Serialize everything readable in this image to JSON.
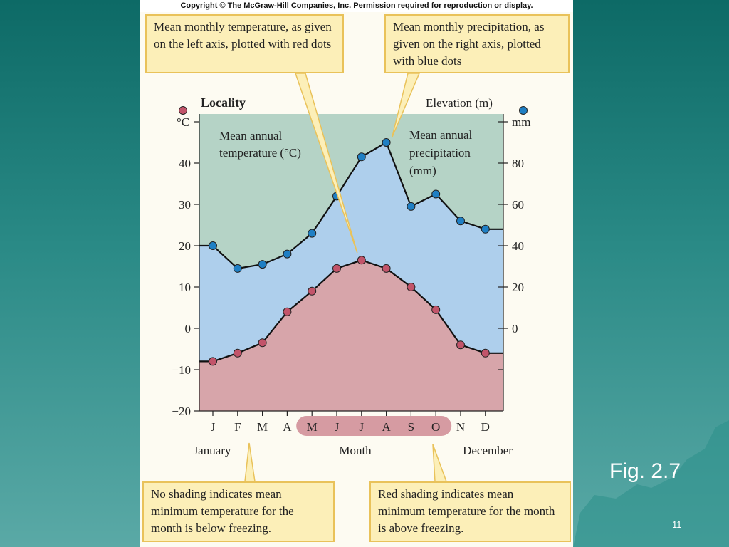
{
  "slide": {
    "fig_label": "Fig. 2.7",
    "number": "11"
  },
  "copyright": "Copyright © The McGraw-Hill Companies, Inc. Permission required for reproduction or display.",
  "callouts": {
    "top_left": "Mean monthly temperature, as given on the left axis, plotted with red dots",
    "top_right": "Mean monthly precipitation, as given on the right axis, plotted with blue dots",
    "bottom_left": "No shading indicates mean minimum temperature for the month is below freezing.",
    "bottom_right": "Red shading indicates mean minimum temperature for the month is above freezing."
  },
  "colors": {
    "temperature_fill": "#d7a5aa",
    "precipitation_fill": "#aecfec",
    "dry_fill": "#b5d3c6",
    "temperature_dot": "#c2546a",
    "precipitation_dot": "#1f7fc4",
    "month_highlight": "#cf8a94"
  },
  "chart_data": {
    "type": "line",
    "title": "Locality",
    "right_title": "Elevation (m)",
    "left_unit": "°C",
    "right_unit": "mm",
    "xlabel": "Month",
    "x_start_label": "January",
    "x_end_label": "December",
    "categories": [
      "J",
      "F",
      "M",
      "A",
      "M",
      "J",
      "J",
      "A",
      "S",
      "O",
      "N",
      "D"
    ],
    "left_ticks": [
      40,
      30,
      20,
      10,
      0,
      -10,
      -20
    ],
    "left_tick_labels": [
      "40",
      "30",
      "20",
      "10",
      "0",
      "−10",
      "−20"
    ],
    "right_ticks": [
      80,
      60,
      40,
      20,
      0
    ],
    "ylim_left": [
      -20,
      50
    ],
    "ylim_right": [
      -40,
      100
    ],
    "highlighted_months": [
      "M",
      "J",
      "J",
      "A",
      "S",
      "O"
    ],
    "area_labels": {
      "temperature": "Mean annual temperature (°C)",
      "precipitation": "Mean annual precipitation (mm)"
    },
    "series": [
      {
        "name": "temperature",
        "axis": "left",
        "values": [
          -8,
          -6,
          -3.5,
          4,
          9,
          14.5,
          16.5,
          14.5,
          10,
          4.5,
          -4,
          -6
        ]
      },
      {
        "name": "precipitation",
        "axis": "right",
        "values": [
          40,
          29,
          31,
          36,
          46,
          64,
          83,
          90,
          59,
          65,
          52,
          48
        ]
      }
    ]
  }
}
